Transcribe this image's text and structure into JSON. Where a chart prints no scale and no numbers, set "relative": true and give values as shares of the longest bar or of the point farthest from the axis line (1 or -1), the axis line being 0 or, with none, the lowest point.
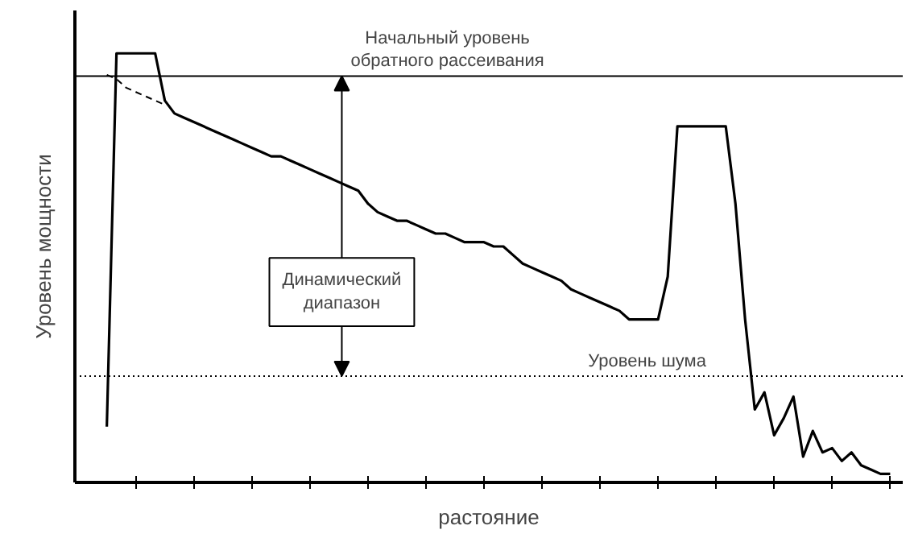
{
  "chart_data": {
    "type": "line",
    "relative": true,
    "xlabel": "растояние",
    "ylabel": "Уровень мощности",
    "grid": false,
    "marker": "none",
    "categories": [
      null,
      null,
      null,
      null,
      null,
      null,
      null,
      null,
      null,
      null,
      null,
      null,
      null,
      null,
      null,
      null,
      null,
      null,
      null,
      null,
      null,
      null,
      null,
      null,
      null,
      null,
      null,
      null,
      null,
      null,
      null,
      null,
      null,
      null,
      null,
      null,
      null,
      null,
      null,
      null,
      null,
      null,
      null,
      null,
      null,
      null,
      null,
      null,
      null,
      null,
      null,
      null,
      null,
      null,
      null,
      null,
      null,
      null,
      null,
      null,
      null,
      null,
      null,
      null,
      null,
      null,
      null,
      null,
      null,
      null,
      null,
      null,
      null,
      null,
      null,
      null,
      null,
      null,
      null,
      null,
      null,
      null
    ],
    "series": [
      {
        "color": "#000000",
        "line_style": "solid",
        "values": [
          0.13,
          1.0,
          1.0,
          1.0,
          1.0,
          1.0,
          0.89,
          0.86,
          0.85,
          0.84,
          0.83,
          0.82,
          0.81,
          0.8,
          0.79,
          0.78,
          0.77,
          0.76,
          0.76,
          0.75,
          0.74,
          0.73,
          0.72,
          0.71,
          0.7,
          0.69,
          0.68,
          0.65,
          0.63,
          0.62,
          0.61,
          0.61,
          0.6,
          0.59,
          0.58,
          0.58,
          0.57,
          0.56,
          0.56,
          0.56,
          0.55,
          0.55,
          0.53,
          0.51,
          0.5,
          0.49,
          0.48,
          0.47,
          0.45,
          0.44,
          0.43,
          0.42,
          0.41,
          0.4,
          0.38,
          0.38,
          0.38,
          0.38,
          0.48,
          0.83,
          0.83,
          0.83,
          0.83,
          0.83,
          0.83,
          0.65,
          0.38,
          0.17,
          0.21,
          0.11,
          0.15,
          0.2,
          0.06,
          0.12,
          0.07,
          0.08,
          0.05,
          0.07,
          0.04,
          0.03,
          0.02,
          0.02
        ]
      },
      {
        "color": "#000000",
        "line_style": "dashed",
        "values": [
          0.95,
          0.94,
          0.92,
          0.91,
          0.9,
          0.89,
          0.88,
          null,
          null,
          null,
          null,
          null,
          null,
          null,
          null,
          null,
          null,
          null,
          null,
          null,
          null,
          null,
          null,
          null,
          null,
          null,
          null,
          null,
          null,
          null,
          null,
          null,
          null,
          null,
          null,
          null,
          null,
          null,
          null,
          null,
          null,
          null,
          null,
          null,
          null,
          null,
          null,
          null,
          null,
          null,
          null,
          null,
          null,
          null,
          null,
          null,
          null,
          null,
          null,
          null,
          null,
          null,
          null,
          null,
          null,
          null,
          null,
          null,
          null,
          null,
          null,
          null,
          null,
          null,
          null,
          null,
          null,
          null,
          null,
          null,
          null,
          null
        ]
      }
    ],
    "ref_lines": [
      {
        "axis": "y",
        "value": 0.947,
        "label": "Начальный уровень\nобратного рассеивания",
        "color": "#000000",
        "line_style": "solid"
      },
      {
        "axis": "y",
        "value": 0.248,
        "label": "Уровень шума",
        "color": "#000000",
        "line_style": "dotted"
      }
    ],
    "annotations": [
      "Динамический\nдиапазон"
    ]
  }
}
